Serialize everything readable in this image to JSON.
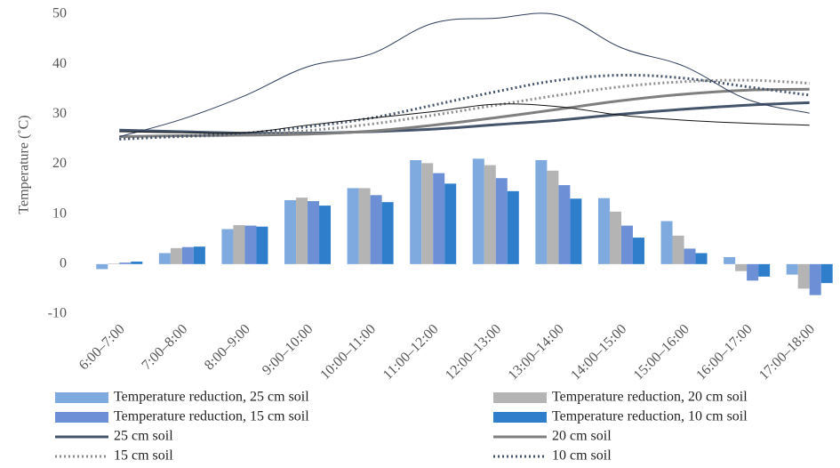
{
  "chart_data": {
    "type": "bar-line",
    "y_label": "Temperature (˚C)",
    "categories": [
      "6:00–7:00",
      "7:00–8:00",
      "8:00–9:00",
      "9:00–10:00",
      "10:00–11:00",
      "11:00–12:00",
      "12:00–13:00",
      "13:00–14:00",
      "14:00–15:00",
      "15:00–16:00",
      "16:00–17:00",
      "17:00–18:00"
    ],
    "ylim": [
      -10,
      50
    ],
    "yticks": [
      -10,
      0,
      10,
      20,
      30,
      40,
      50
    ],
    "grid": false,
    "series": [
      {
        "name": "Temperature reduction, 25 cm soil",
        "kind": "bar",
        "color": "#7eaadf",
        "values": [
          -1.0,
          2.2,
          7.0,
          12.8,
          15.2,
          20.8,
          21.1,
          20.8,
          13.2,
          8.6,
          1.4,
          -2.1
        ]
      },
      {
        "name": "Temperature reduction, 20 cm soil",
        "kind": "bar",
        "color": "#b4b4b4",
        "values": [
          0.1,
          3.2,
          7.8,
          13.3,
          15.2,
          20.2,
          19.8,
          18.7,
          10.5,
          5.7,
          -1.4,
          -4.9
        ]
      },
      {
        "name": "Temperature reduction, 15 cm soil",
        "kind": "bar",
        "color": "#6c8fd6",
        "values": [
          0.3,
          3.4,
          7.7,
          12.6,
          13.8,
          18.2,
          17.2,
          15.8,
          7.7,
          3.1,
          -3.3,
          -6.2
        ]
      },
      {
        "name": "Temperature reduction, 10 cm soil",
        "kind": "bar",
        "color": "#2f7ecb",
        "values": [
          0.5,
          3.5,
          7.5,
          11.7,
          12.4,
          16.1,
          14.6,
          13.1,
          5.3,
          2.2,
          -2.5,
          -3.8
        ]
      },
      {
        "name": "25 cm soil",
        "kind": "line",
        "color": "#44546a",
        "width": 3,
        "dash": "solid",
        "values": [
          26.8,
          26.5,
          26.2,
          26.2,
          26.5,
          27.0,
          27.9,
          28.8,
          30.0,
          31.0,
          31.8,
          32.3
        ]
      },
      {
        "name": "20 cm soil",
        "kind": "line",
        "color": "#7f7f7f",
        "width": 3,
        "dash": "solid",
        "values": [
          25.5,
          25.7,
          25.8,
          26.0,
          26.6,
          27.8,
          29.3,
          31.0,
          32.7,
          34.0,
          34.8,
          35.0
        ]
      },
      {
        "name": "15 cm soil",
        "kind": "line",
        "color": "#8c8c8c",
        "width": 3,
        "dash": "dotted",
        "values": [
          25.2,
          25.5,
          25.9,
          26.7,
          28.0,
          29.8,
          31.8,
          33.8,
          35.5,
          36.5,
          36.8,
          36.2
        ]
      },
      {
        "name": "10 cm soil",
        "kind": "line",
        "color": "#44546a",
        "width": 3,
        "dash": "dotted",
        "values": [
          25.0,
          25.6,
          26.2,
          27.5,
          29.2,
          31.8,
          34.5,
          36.8,
          37.8,
          37.2,
          35.5,
          33.8
        ]
      },
      {
        "kind": "line",
        "color": "#2f3e5c",
        "width": 1,
        "dash": "solid",
        "values": [
          25.5,
          29.0,
          33.7,
          39.5,
          42.0,
          48.2,
          49.2,
          49.8,
          43.3,
          39.6,
          33.0,
          30.2
        ]
      },
      {
        "kind": "line",
        "color": "#111111",
        "width": 1,
        "dash": "solid",
        "values": [
          26.5,
          26.3,
          26.3,
          27.8,
          29.2,
          30.5,
          32.0,
          31.5,
          29.8,
          28.8,
          28.2,
          27.8
        ]
      }
    ]
  }
}
